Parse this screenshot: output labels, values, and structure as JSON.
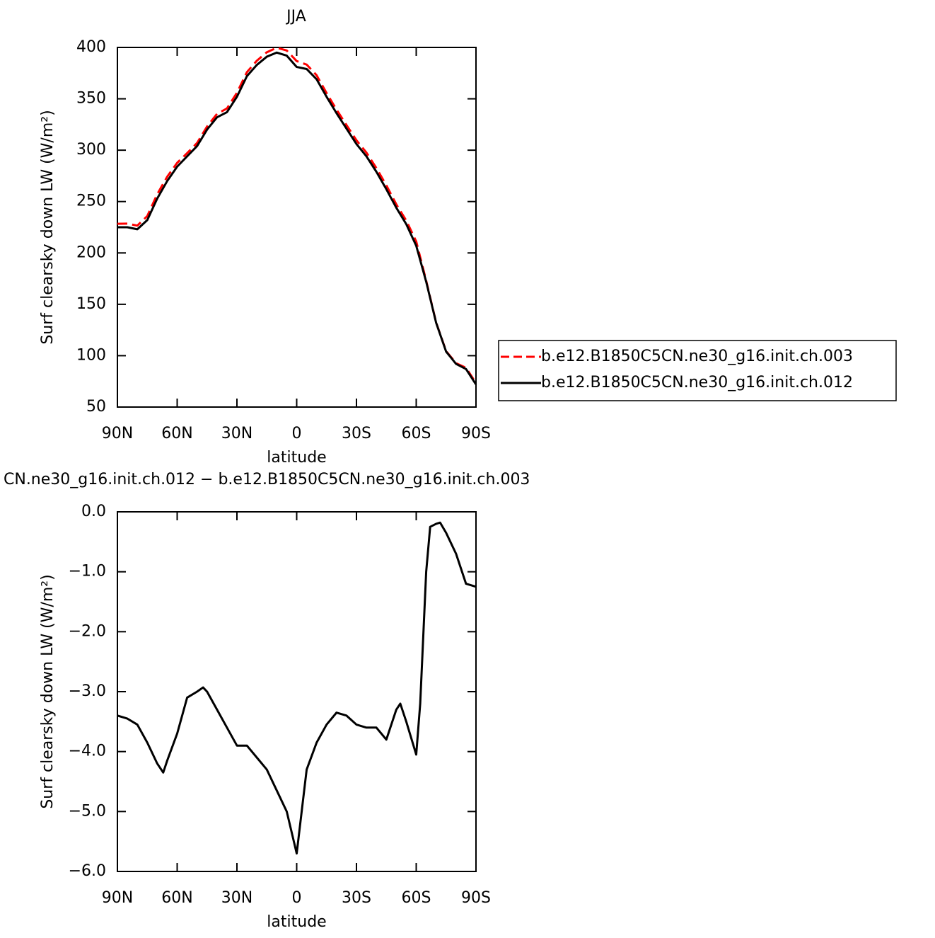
{
  "chart_data": [
    {
      "type": "line",
      "title": "JJA",
      "x_label": "latitude",
      "y_label": "Surf clearsky down LW (W/m²)",
      "x": [
        90,
        85,
        80,
        75,
        70,
        65,
        60,
        55,
        50,
        45,
        40,
        35,
        30,
        25,
        20,
        15,
        10,
        5,
        0,
        -5,
        -10,
        -15,
        -20,
        -25,
        -30,
        -35,
        -40,
        -45,
        -50,
        -55,
        -60,
        -65,
        -70,
        -75,
        -80,
        -85,
        -90
      ],
      "series": [
        {
          "name": "b.e12.B1850C5CN.ne30_g16.init.ch.003",
          "color": "#ff0000",
          "dashed": true,
          "values": [
            228.4,
            228.5,
            226.6,
            235.9,
            257.2,
            274.2,
            287.7,
            297.1,
            307,
            323,
            335.3,
            340.6,
            355.9,
            375.9,
            387.1,
            395.3,
            399.7,
            397,
            386.7,
            383.3,
            372.9,
            355.6,
            339.4,
            324.4,
            309.6,
            297.6,
            282.6,
            265.8,
            247.3,
            231.5,
            211.1,
            173,
            132.2,
            104.4,
            92.7,
            88.2,
            73.3
          ]
        },
        {
          "name": "b.e12.B1850C5CN.ne30_g16.init.ch.012",
          "color": "#000000",
          "dashed": false,
          "values": [
            225,
            225,
            223,
            232,
            253,
            270,
            284,
            294,
            304,
            320,
            332,
            337,
            352,
            372,
            383,
            391,
            395,
            392,
            381,
            379,
            369,
            352,
            336,
            321,
            306,
            294,
            279,
            262,
            244,
            228,
            207,
            172,
            132,
            104,
            92,
            87,
            72
          ]
        }
      ],
      "xlim": [
        90,
        -90
      ],
      "xticks": [
        {
          "value": 90,
          "label": "90N"
        },
        {
          "value": 60,
          "label": "60N"
        },
        {
          "value": 30,
          "label": "30N"
        },
        0,
        {
          "value": -30,
          "label": "30S"
        },
        {
          "value": -60,
          "label": "60S"
        },
        {
          "value": -90,
          "label": "90S"
        }
      ],
      "ylim": [
        50,
        400
      ],
      "yticks": [
        50,
        100,
        150,
        200,
        250,
        300,
        350,
        400
      ],
      "legend": "right"
    },
    {
      "type": "line",
      "title": "CN.ne30_g16.init.ch.012 − b.e12.B1850C5CN.ne30_g16.init.ch.003",
      "x_label": "latitude",
      "y_label": "Surf clearsky down LW (W/m²)",
      "x": [
        90,
        85,
        80,
        75,
        70,
        67,
        65,
        60,
        55,
        50,
        47,
        45,
        40,
        35,
        30,
        25,
        20,
        15,
        10,
        5,
        0,
        -5,
        -10,
        -15,
        -20,
        -25,
        -30,
        -35,
        -40,
        -45,
        -50,
        -52,
        -55,
        -60,
        -62,
        -65,
        -67,
        -70,
        -72,
        -75,
        -80,
        -85,
        -90
      ],
      "values": [
        -3.4,
        -3.45,
        -3.55,
        -3.85,
        -4.2,
        -4.35,
        -4.15,
        -3.7,
        -3.1,
        -3.0,
        -2.93,
        -3.0,
        -3.3,
        -3.6,
        -3.9,
        -3.9,
        -4.1,
        -4.3,
        -4.65,
        -5.0,
        -5.7,
        -4.3,
        -3.85,
        -3.55,
        -3.35,
        -3.4,
        -3.55,
        -3.6,
        -3.6,
        -3.8,
        -3.3,
        -3.2,
        -3.5,
        -4.05,
        -3.2,
        -1.0,
        -0.25,
        -0.2,
        -0.18,
        -0.35,
        -0.7,
        -1.2,
        -1.25
      ],
      "color": "#000000",
      "xlim": [
        90,
        -90
      ],
      "xticks": [
        {
          "value": 90,
          "label": "90N"
        },
        {
          "value": 60,
          "label": "60N"
        },
        {
          "value": 30,
          "label": "30N"
        },
        0,
        {
          "value": -30,
          "label": "30S"
        },
        {
          "value": -60,
          "label": "60S"
        },
        {
          "value": -90,
          "label": "90S"
        }
      ],
      "ylim": [
        -6,
        0
      ],
      "yticks": [
        {
          "value": -6,
          "label": "−6.0"
        },
        {
          "value": -5,
          "label": "−5.0"
        },
        {
          "value": -4,
          "label": "−4.0"
        },
        {
          "value": -3,
          "label": "−3.0"
        },
        {
          "value": -2,
          "label": "−2.0"
        },
        {
          "value": -1,
          "label": "−1.0"
        },
        {
          "value": 0,
          "label": "0.0"
        }
      ]
    }
  ]
}
